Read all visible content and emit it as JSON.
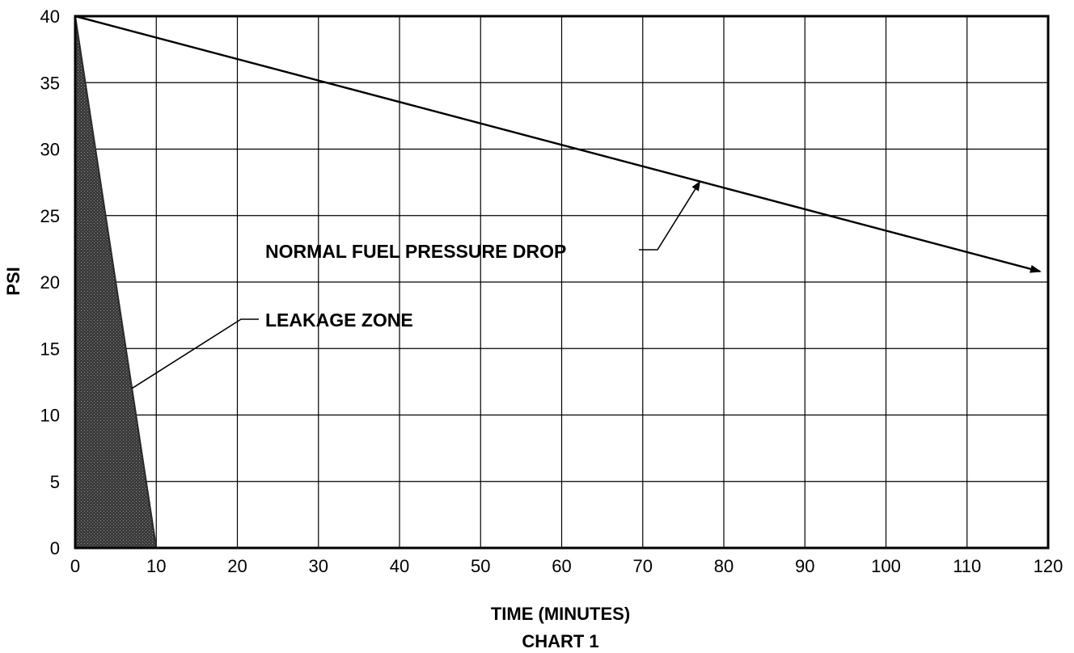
{
  "chart_data": {
    "type": "line",
    "xlabel": "TIME (MINUTES)",
    "ylabel": "PSI",
    "caption": "CHART 1",
    "xlim": [
      0,
      120
    ],
    "ylim": [
      0,
      40
    ],
    "x_ticks": [
      0,
      10,
      20,
      30,
      40,
      50,
      60,
      70,
      80,
      90,
      100,
      110,
      120
    ],
    "y_ticks": [
      0,
      5,
      10,
      15,
      20,
      25,
      30,
      35,
      40
    ],
    "grid": true,
    "series": [
      {
        "name": "NORMAL FUEL PRESSURE DROP",
        "x": [
          0,
          119
        ],
        "y": [
          40,
          20.8
        ],
        "arrow_end": true
      }
    ],
    "regions": [
      {
        "name": "LEAKAGE ZONE",
        "polygon": [
          [
            0,
            40
          ],
          [
            10,
            0
          ],
          [
            0,
            0
          ]
        ],
        "fill": "#2a2a2a"
      }
    ],
    "annotations": [
      {
        "text": "NORMAL FUEL PRESSURE DROP",
        "points_to": [
          77,
          27.5
        ]
      },
      {
        "text": "LEAKAGE ZONE",
        "points_to": [
          7,
          12
        ]
      }
    ]
  }
}
